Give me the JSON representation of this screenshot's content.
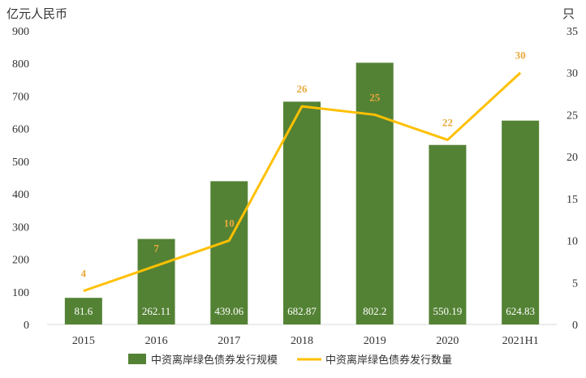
{
  "chart_data": {
    "type": "bar",
    "left_axis_unit": "亿元人民币",
    "right_axis_unit": "只",
    "categories": [
      "2015",
      "2016",
      "2017",
      "2018",
      "2019",
      "2020",
      "2021H1"
    ],
    "series": [
      {
        "name": "中资离岸绿色债券发行规模",
        "type": "bar",
        "axis": "left",
        "color": "#548235",
        "values": [
          81.6,
          262.11,
          439.06,
          682.87,
          802.2,
          550.19,
          624.83
        ],
        "labels": [
          "81.6",
          "262.11",
          "439.06",
          "682.87",
          "802.2",
          "550.19",
          "624.83"
        ]
      },
      {
        "name": "中资离岸绿色债券发行数量",
        "type": "line",
        "axis": "right",
        "color": "#FFC000",
        "values": [
          4,
          7,
          10,
          26,
          25,
          22,
          30
        ],
        "labels": [
          "4",
          "7",
          "10",
          "26",
          "25",
          "22",
          "30"
        ]
      }
    ],
    "y_left": {
      "min": 0,
      "max": 900,
      "ticks": [
        "0",
        "100",
        "200",
        "300",
        "400",
        "500",
        "600",
        "700",
        "800",
        "900"
      ]
    },
    "y_right": {
      "min": 0,
      "max": 35,
      "ticks": [
        "0",
        "5",
        "10",
        "15",
        "20",
        "25",
        "30",
        "35"
      ]
    },
    "grid": false,
    "legend_position": "bottom"
  }
}
